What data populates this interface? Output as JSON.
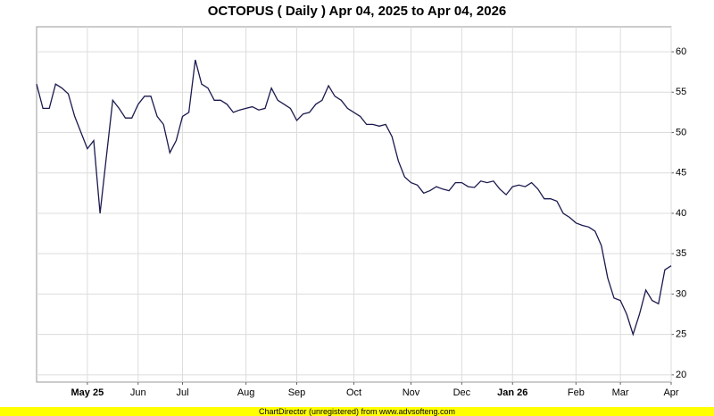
{
  "chart_data": {
    "type": "line",
    "title": "OCTOPUS ( Daily ) Apr 04, 2025 to Apr 04, 2026",
    "footer": "ChartDirector (unregistered) from www.advsofteng.com",
    "categories": [
      null,
      null,
      null,
      null,
      null,
      null,
      null,
      null,
      "May 25",
      null,
      null,
      null,
      null,
      null,
      null,
      null,
      "Jun",
      null,
      null,
      null,
      null,
      null,
      null,
      "Jul",
      null,
      null,
      null,
      null,
      null,
      null,
      null,
      null,
      null,
      "Aug",
      null,
      null,
      null,
      null,
      null,
      null,
      null,
      "Sep",
      null,
      null,
      null,
      null,
      null,
      null,
      null,
      null,
      "Oct",
      null,
      null,
      null,
      null,
      null,
      null,
      null,
      null,
      "Nov",
      null,
      null,
      null,
      null,
      null,
      null,
      null,
      "Dec",
      null,
      null,
      null,
      null,
      null,
      null,
      null,
      "Jan 26",
      null,
      null,
      null,
      null,
      null,
      null,
      null,
      null,
      null,
      "Feb",
      null,
      null,
      null,
      null,
      null,
      null,
      "Mar",
      null,
      null,
      null,
      null,
      null,
      null,
      null,
      "Apr"
    ],
    "series": [
      {
        "name": "OCTOPUS",
        "color": "#1a1a4e",
        "values": [
          56,
          53,
          53,
          56,
          55.5,
          54.8,
          52,
          50,
          48,
          49,
          40,
          47,
          54,
          53,
          51.8,
          51.8,
          53.5,
          54.5,
          54.5,
          52,
          51,
          47.5,
          49,
          52,
          52.5,
          59,
          56,
          55.5,
          54,
          54,
          53.5,
          52.5,
          52.8,
          53,
          53.2,
          52.8,
          53,
          55.5,
          54,
          53.5,
          53,
          51.5,
          52.3,
          52.5,
          53.5,
          54,
          55.8,
          54.5,
          54,
          53,
          52.5,
          52,
          51,
          51,
          50.8,
          51,
          49.5,
          46.5,
          44.5,
          43.8,
          43.5,
          42.5,
          42.8,
          43.3,
          43,
          42.8,
          43.8,
          43.8,
          43.3,
          43.2,
          44,
          43.8,
          44,
          43,
          42.3,
          43.3,
          43.5,
          43.3,
          43.8,
          43,
          41.8,
          41.8,
          41.5,
          40,
          39.5,
          38.8,
          38.5,
          38.3,
          37.8,
          36,
          32,
          29.5,
          29.2,
          27.5,
          25,
          27.5,
          30.5,
          29.2,
          28.8,
          33,
          33.5
        ]
      }
    ],
    "ylim": [
      19.1,
      63.1
    ],
    "yticks": [
      20,
      25,
      30,
      35,
      40,
      45,
      50,
      55,
      60
    ],
    "grid": true
  }
}
